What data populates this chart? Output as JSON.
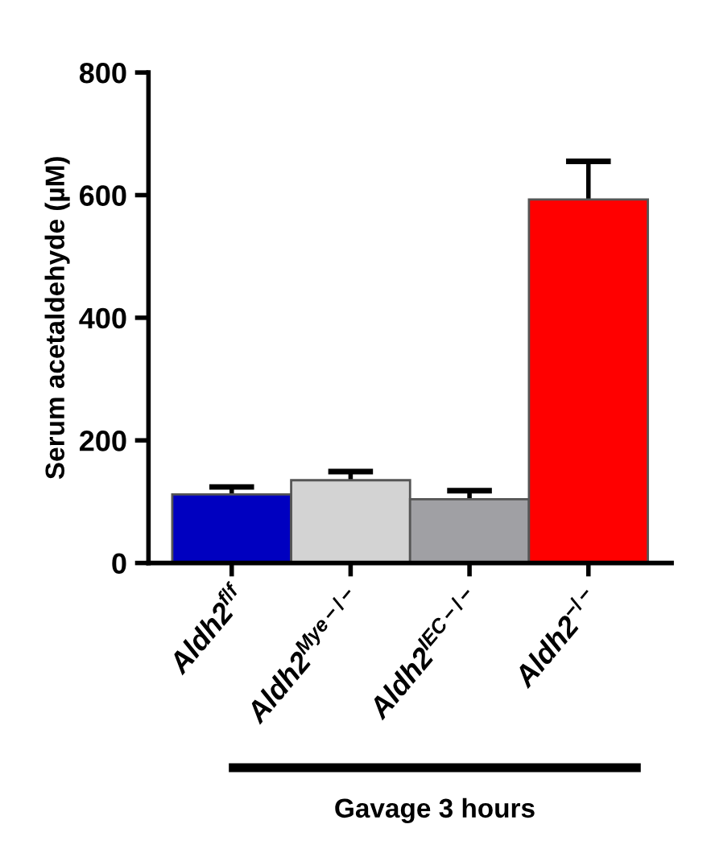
{
  "chart_data": {
    "type": "bar",
    "ylabel": "Serum acetaldehyde (µM)",
    "xlabel": "Gavage 3 hours",
    "categories": [
      "Aldh2$^{f/f}$",
      "Aldh2$^{Mye−/−}$",
      "Aldh2$^{IEC−/−}$",
      "Aldh2$^{−/−}$"
    ],
    "values": [
      112,
      135,
      104,
      593
    ],
    "errors": [
      12,
      14,
      14,
      62
    ],
    "colors": [
      "#0000c0",
      "#d3d3d3",
      "#a0a0a4",
      "#ff0000"
    ],
    "ylim": [
      0,
      800
    ],
    "yticks": [
      0,
      200,
      400,
      600,
      800
    ],
    "grid": false
  }
}
